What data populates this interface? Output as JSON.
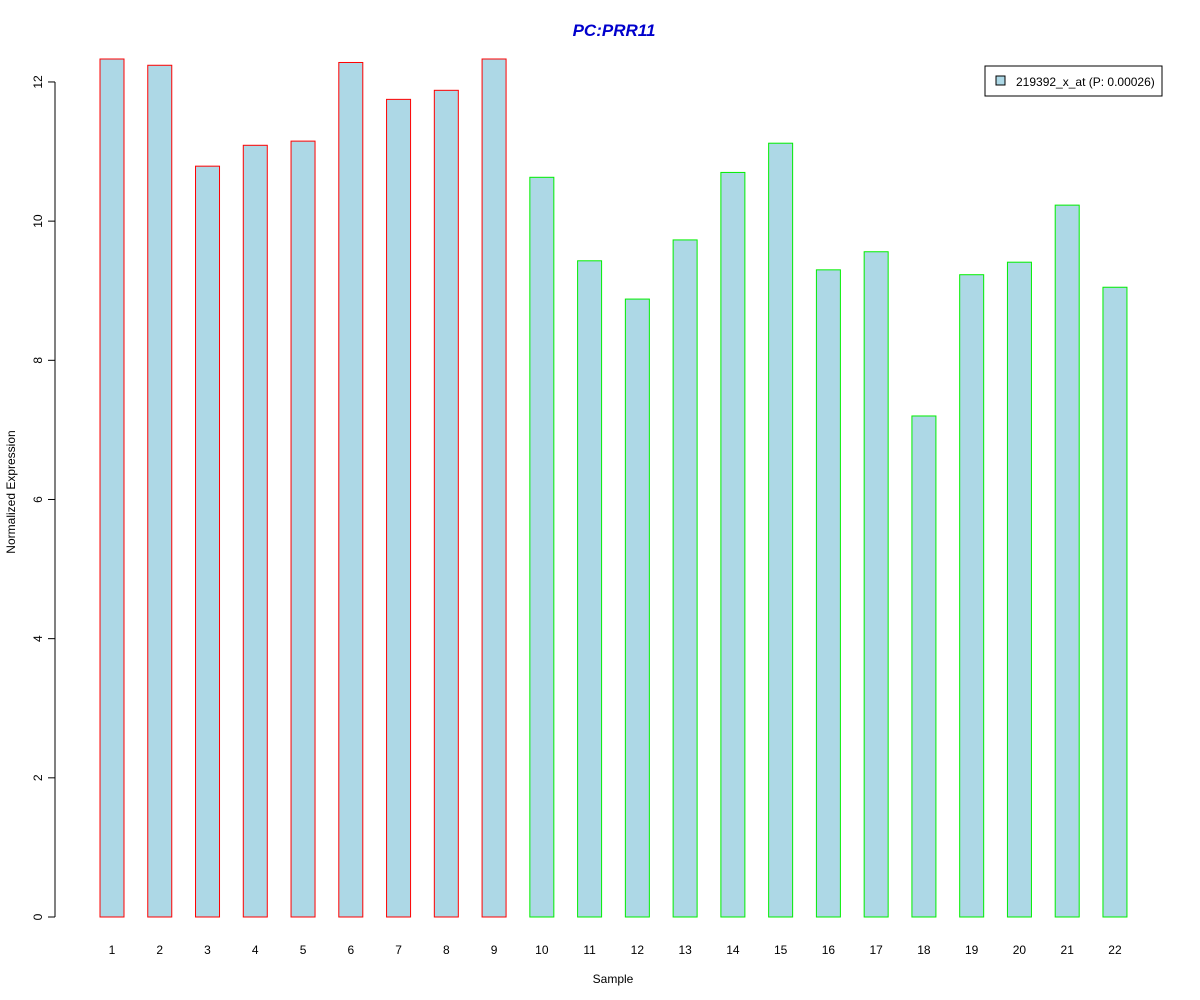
{
  "chart_data": {
    "type": "bar",
    "title": "PC:PRR11",
    "xlabel": "Sample",
    "ylabel": "Normalized Expression",
    "categories": [
      "1",
      "2",
      "3",
      "4",
      "5",
      "6",
      "7",
      "8",
      "9",
      "10",
      "11",
      "12",
      "13",
      "14",
      "15",
      "16",
      "17",
      "18",
      "19",
      "20",
      "21",
      "22"
    ],
    "series": [
      {
        "name": "219392_x_at (P: 0.00026)",
        "values": [
          12.33,
          12.24,
          10.79,
          11.09,
          11.15,
          12.28,
          11.75,
          11.88,
          12.33,
          10.63,
          9.43,
          8.88,
          9.73,
          10.7,
          11.12,
          9.3,
          9.56,
          7.2,
          9.23,
          9.41,
          10.23,
          9.05
        ]
      }
    ],
    "ylim": [
      0,
      12.33
    ],
    "yticks": [
      "0",
      "2",
      "4",
      "6",
      "8",
      "10",
      "12"
    ],
    "grid": false,
    "legend_position": "top-right",
    "colors": {
      "title": "#0000cc",
      "bar_fill": "#add8e6",
      "group_a_border": "#ff0000",
      "group_b_border": "#00ee00",
      "group_a_count": 9,
      "axis": "#000000"
    }
  }
}
